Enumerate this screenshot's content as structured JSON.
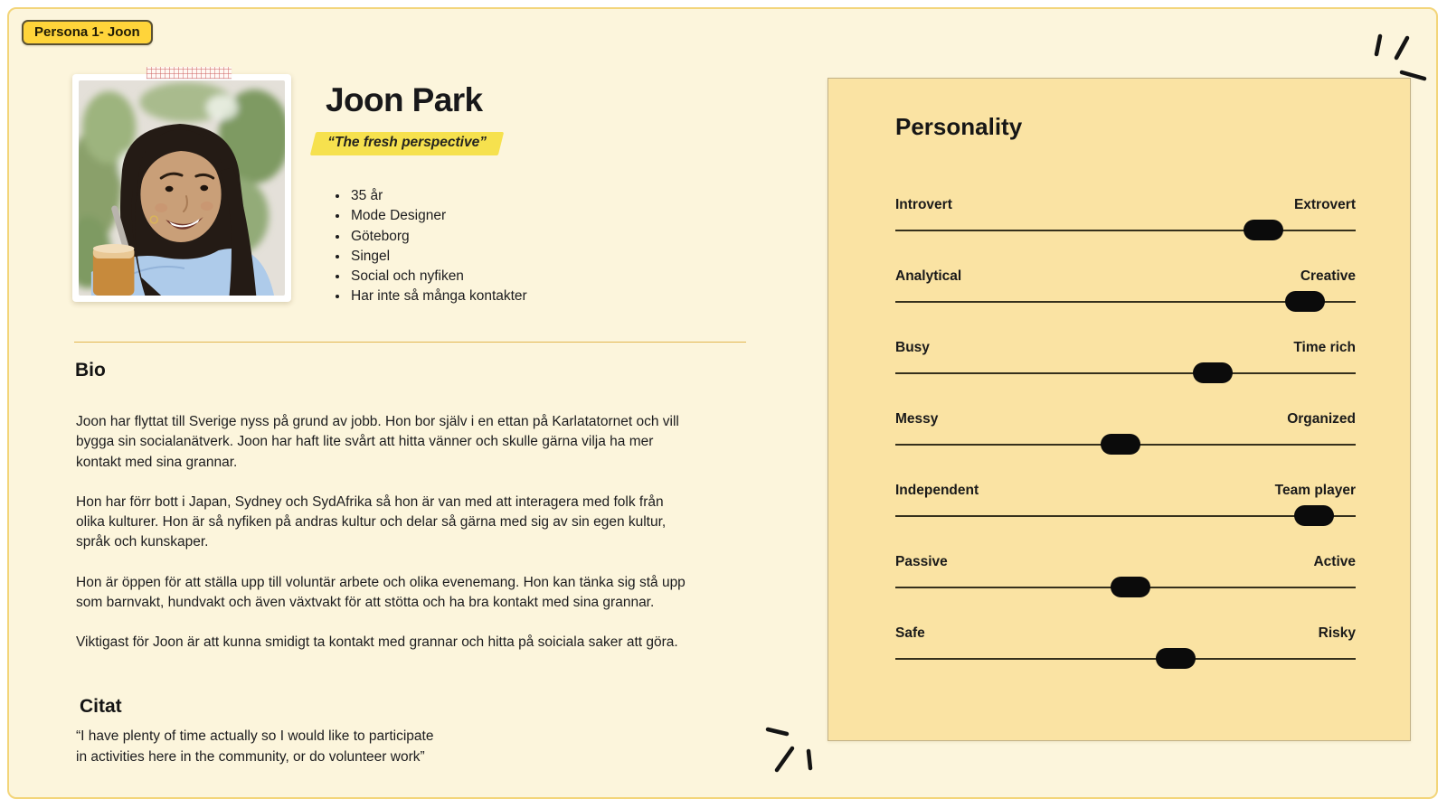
{
  "badge": {
    "label": "Persona 1- Joon"
  },
  "header": {
    "name": "Joon Park",
    "tagline": "“The fresh perspective”",
    "facts": [
      "35 år",
      "Mode Designer",
      "Göteborg",
      "Singel",
      "Social och nyfiken",
      "Har inte så många kontakter"
    ]
  },
  "bio": {
    "title": "Bio",
    "paragraphs": [
      "Joon har flyttat till Sverige nyss på grund av jobb. Hon bor själv i en ettan på Karlatatornet och vill bygga sin socialanätverk. Joon har haft lite svårt att hitta vänner och skulle gärna vilja ha mer kontakt med sina grannar.",
      "Hon har förr bott i Japan, Sydney och SydAfrika så hon är van med att interagera med folk från olika kulturer. Hon är så nyfiken på andras kultur och delar så gärna med sig av sin egen kultur, språk och kunskaper.",
      "Hon är öppen för att ställa upp till voluntär arbete och olika evenemang. Hon kan tänka sig stå upp som barnvakt, hundvakt och även växtvakt för att stötta och ha bra kontakt med sina grannar.",
      "Viktigast för Joon är att kunna smidigt ta kontakt med grannar och hitta på soiciala saker att göra."
    ]
  },
  "citat": {
    "title": "Citat",
    "lines": [
      "“I have plenty of time actually so I would like to participate",
      "in activities here in the community, or do volunteer work”"
    ]
  },
  "personality": {
    "title": "Personality",
    "traits": [
      {
        "left": "Introvert",
        "right": "Extrovert",
        "value": 0.8
      },
      {
        "left": "Analytical",
        "right": "Creative",
        "value": 0.89
      },
      {
        "left": "Busy",
        "right": "Time rich",
        "value": 0.69
      },
      {
        "left": "Messy",
        "right": "Organized",
        "value": 0.49
      },
      {
        "left": "Independent",
        "right": "Team player",
        "value": 0.91
      },
      {
        "left": "Passive",
        "right": "Active",
        "value": 0.51
      },
      {
        "left": "Safe",
        "right": "Risky",
        "value": 0.61
      }
    ]
  },
  "colors": {
    "page_bg": "#FCF5DC",
    "page_border": "#F3D57A",
    "panel_bg": "#FAE3A3",
    "badge_bg": "#FFD43A",
    "highlight": "#F6E14E",
    "divider": "#E2B750",
    "text": "#1D1D1F",
    "slider_marker": "#0B0B0B"
  }
}
